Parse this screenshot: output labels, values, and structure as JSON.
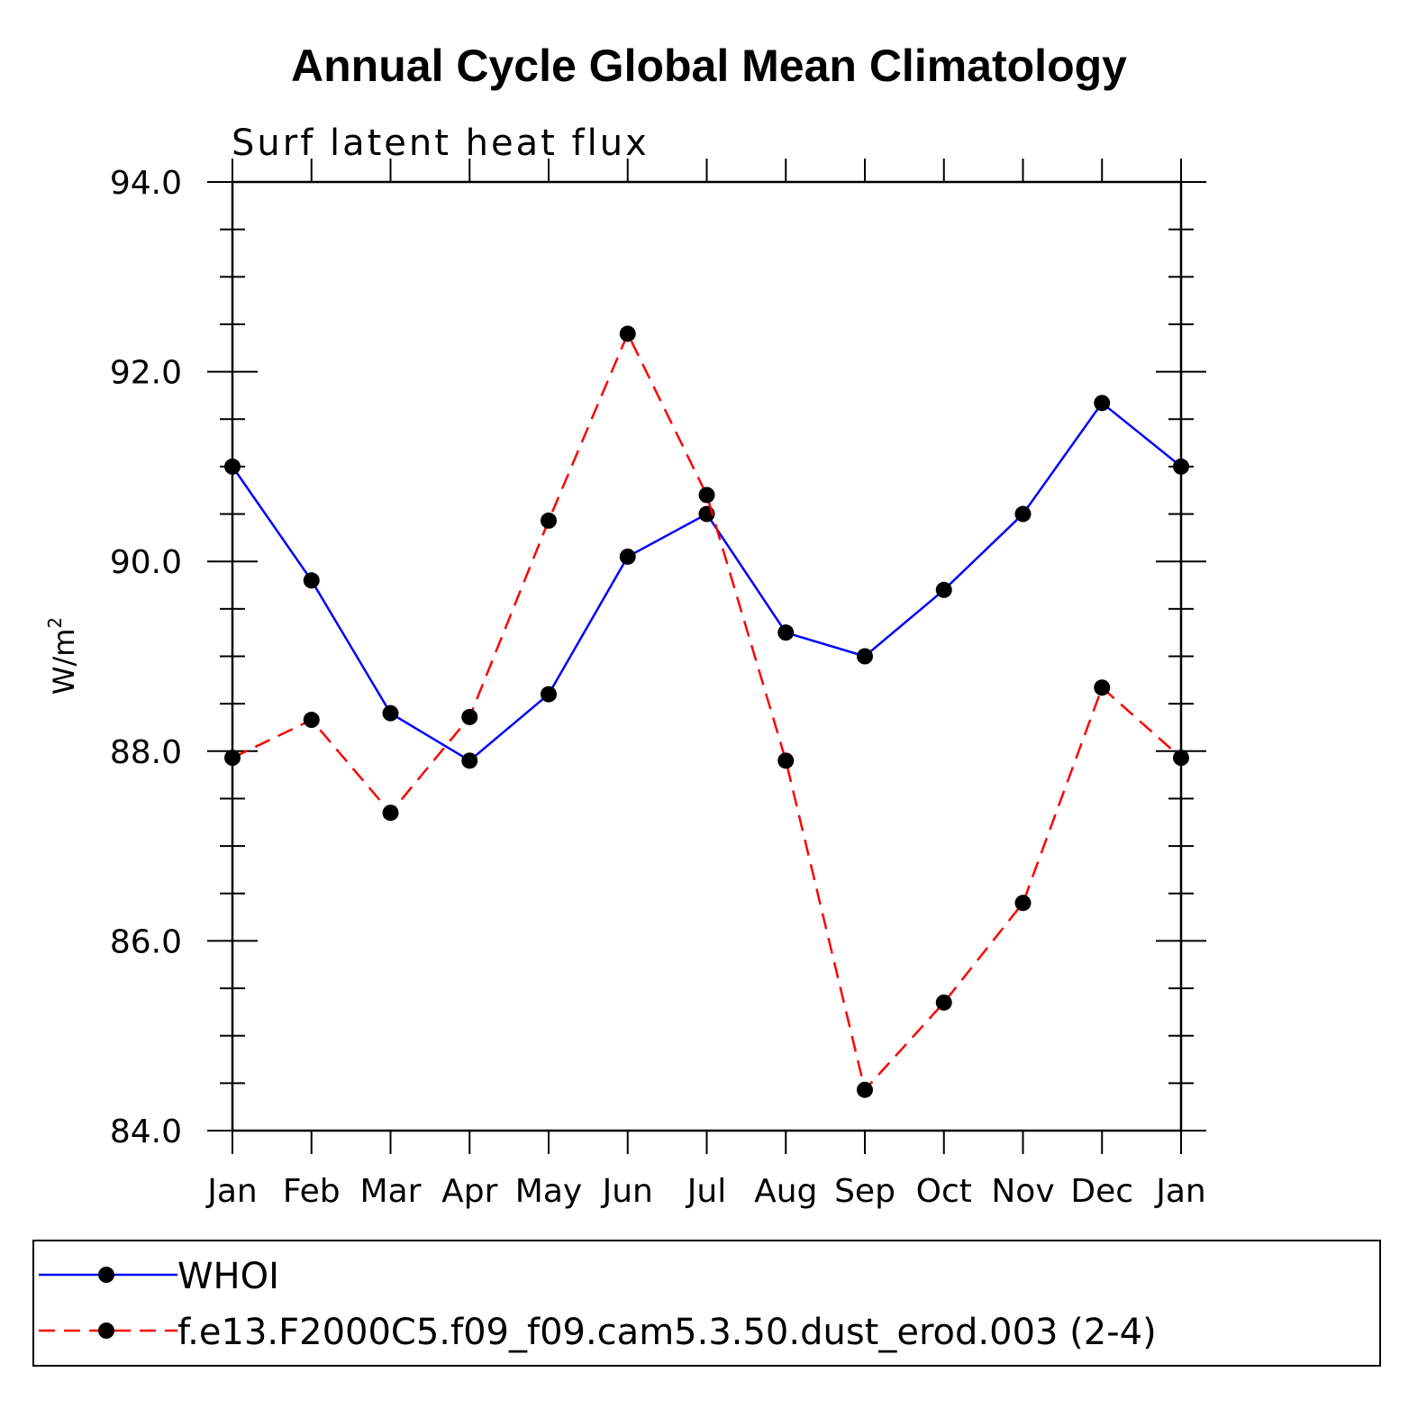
{
  "chart_data": {
    "type": "line",
    "title": "Annual Cycle Global Mean Climatology",
    "subtitle": "Surf latent heat flux",
    "ylabel": "W/m",
    "ylabel_superscript": "2",
    "ylim": [
      84.0,
      94.0
    ],
    "yticks": [
      "84.0",
      "86.0",
      "88.0",
      "90.0",
      "92.0",
      "94.0"
    ],
    "categories": [
      "Jan",
      "Feb",
      "Mar",
      "Apr",
      "May",
      "Jun",
      "Jul",
      "Aug",
      "Sep",
      "Oct",
      "Nov",
      "Dec",
      "Jan"
    ],
    "series": [
      {
        "name": "WHOI",
        "color": "#0000ff",
        "dash": "solid",
        "values": [
          91.0,
          89.8,
          88.4,
          87.9,
          88.6,
          90.05,
          90.5,
          89.25,
          89.0,
          89.7,
          90.5,
          91.67,
          91.0
        ]
      },
      {
        "name": "f.e13.F2000C5.f09_f09.cam5.3.50.dust_erod.003 (2-4)",
        "color": "#ff0000",
        "dash": "dashed",
        "values": [
          87.93,
          88.33,
          87.35,
          88.36,
          90.43,
          92.4,
          90.7,
          87.9,
          84.43,
          85.35,
          86.4,
          88.67,
          87.93
        ]
      }
    ],
    "legend_position": "bottom"
  }
}
